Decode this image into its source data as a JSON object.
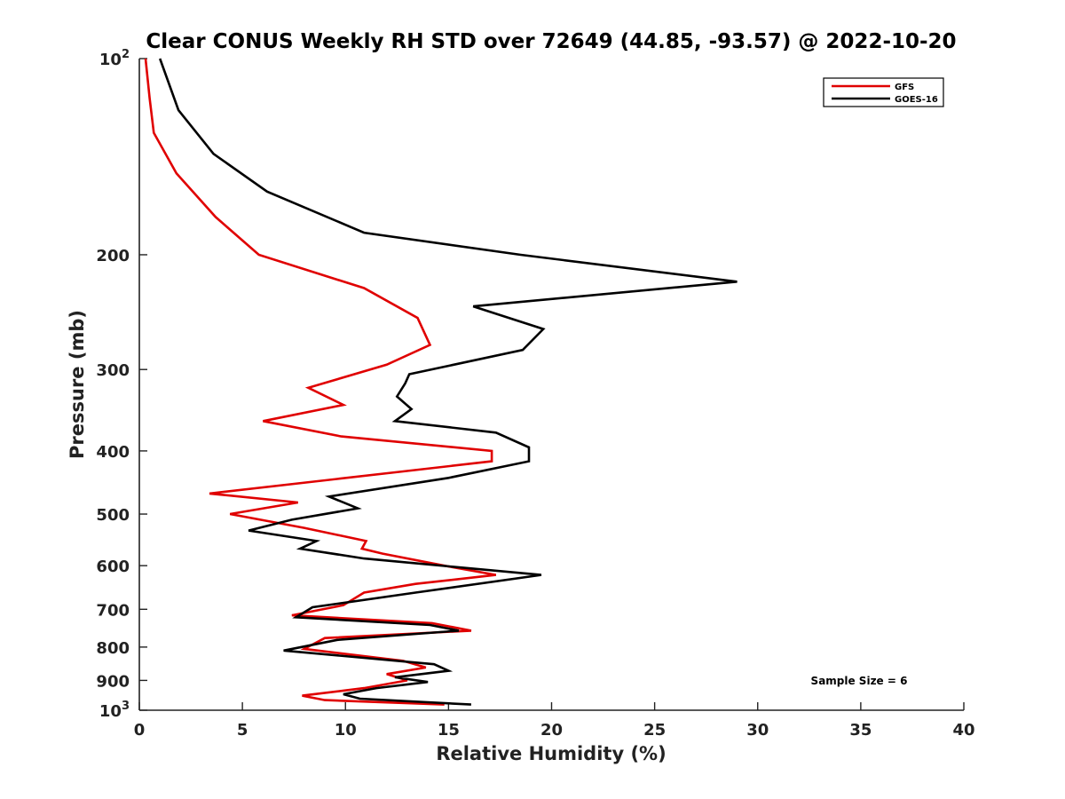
{
  "chart_data": {
    "type": "line",
    "title": "Clear CONUS Weekly RH STD over 72649 (44.85, -93.57) @ 2022-10-20",
    "xlabel": "Relative Humidity (%)",
    "ylabel": "Pressure (mb)",
    "xlim": [
      0,
      40
    ],
    "ylim": [
      100,
      1000
    ],
    "y_scale": "log",
    "y_reversed": true,
    "x_ticks": [
      "0",
      "5",
      "10",
      "15",
      "20",
      "25",
      "30",
      "35",
      "40"
    ],
    "y_ticks": [
      {
        "value": 100,
        "base": "10",
        "exp": "2"
      },
      {
        "value": 200,
        "label": "200"
      },
      {
        "value": 300,
        "label": "300"
      },
      {
        "value": 400,
        "label": "400"
      },
      {
        "value": 500,
        "label": "500"
      },
      {
        "value": 600,
        "label": "600"
      },
      {
        "value": 700,
        "label": "700"
      },
      {
        "value": 800,
        "label": "800"
      },
      {
        "value": 900,
        "label": "900"
      },
      {
        "value": 1000,
        "base": "10",
        "exp": "3"
      }
    ],
    "grid": false,
    "legend_position": "top-right",
    "annotation": "Sample Size = 6",
    "series": [
      {
        "name": "GFS",
        "color": "#e00000",
        "points": [
          [
            0.3,
            100
          ],
          [
            0.5,
            115
          ],
          [
            0.7,
            130
          ],
          [
            1.8,
            150
          ],
          [
            3.7,
            175
          ],
          [
            5.8,
            200
          ],
          [
            10.9,
            225
          ],
          [
            13.5,
            250
          ],
          [
            14.1,
            275
          ],
          [
            12.0,
            295
          ],
          [
            8.2,
            320
          ],
          [
            9.9,
            340
          ],
          [
            6.0,
            360
          ],
          [
            9.8,
            380
          ],
          [
            17.1,
            400
          ],
          [
            17.1,
            415
          ],
          [
            12.8,
            430
          ],
          [
            3.4,
            465
          ],
          [
            7.7,
            480
          ],
          [
            4.4,
            500
          ],
          [
            8.0,
            525
          ],
          [
            11.0,
            550
          ],
          [
            10.8,
            565
          ],
          [
            11.8,
            575
          ],
          [
            14.8,
            600
          ],
          [
            17.3,
            620
          ],
          [
            13.4,
            640
          ],
          [
            10.9,
            660
          ],
          [
            9.9,
            690
          ],
          [
            7.4,
            715
          ],
          [
            14.2,
            735
          ],
          [
            16.1,
            755
          ],
          [
            9.0,
            775
          ],
          [
            8.0,
            805
          ],
          [
            12.8,
            840
          ],
          [
            13.9,
            860
          ],
          [
            12.0,
            880
          ],
          [
            13.0,
            900
          ],
          [
            10.9,
            925
          ],
          [
            7.9,
            950
          ],
          [
            9.0,
            965
          ],
          [
            14.8,
            980
          ]
        ]
      },
      {
        "name": "GOES-16",
        "color": "#000000",
        "points": [
          [
            1.0,
            100
          ],
          [
            1.9,
            120
          ],
          [
            3.6,
            140
          ],
          [
            6.2,
            160
          ],
          [
            10.9,
            185
          ],
          [
            18.5,
            200
          ],
          [
            29.0,
            220
          ],
          [
            16.2,
            240
          ],
          [
            19.6,
            260
          ],
          [
            18.6,
            280
          ],
          [
            13.1,
            305
          ],
          [
            12.9,
            315
          ],
          [
            12.5,
            330
          ],
          [
            13.2,
            345
          ],
          [
            12.4,
            360
          ],
          [
            17.3,
            375
          ],
          [
            18.9,
            395
          ],
          [
            18.9,
            415
          ],
          [
            15.0,
            440
          ],
          [
            9.2,
            470
          ],
          [
            10.6,
            490
          ],
          [
            7.4,
            510
          ],
          [
            5.3,
            530
          ],
          [
            8.6,
            550
          ],
          [
            7.8,
            565
          ],
          [
            10.9,
            585
          ],
          [
            19.5,
            620
          ],
          [
            13.4,
            660
          ],
          [
            8.4,
            695
          ],
          [
            7.6,
            720
          ],
          [
            14.1,
            740
          ],
          [
            15.5,
            755
          ],
          [
            9.6,
            780
          ],
          [
            7.0,
            810
          ],
          [
            14.3,
            850
          ],
          [
            15.0,
            870
          ],
          [
            12.4,
            890
          ],
          [
            14.0,
            905
          ],
          [
            11.5,
            925
          ],
          [
            9.9,
            945
          ],
          [
            10.7,
            960
          ],
          [
            16.1,
            980
          ]
        ]
      }
    ]
  }
}
